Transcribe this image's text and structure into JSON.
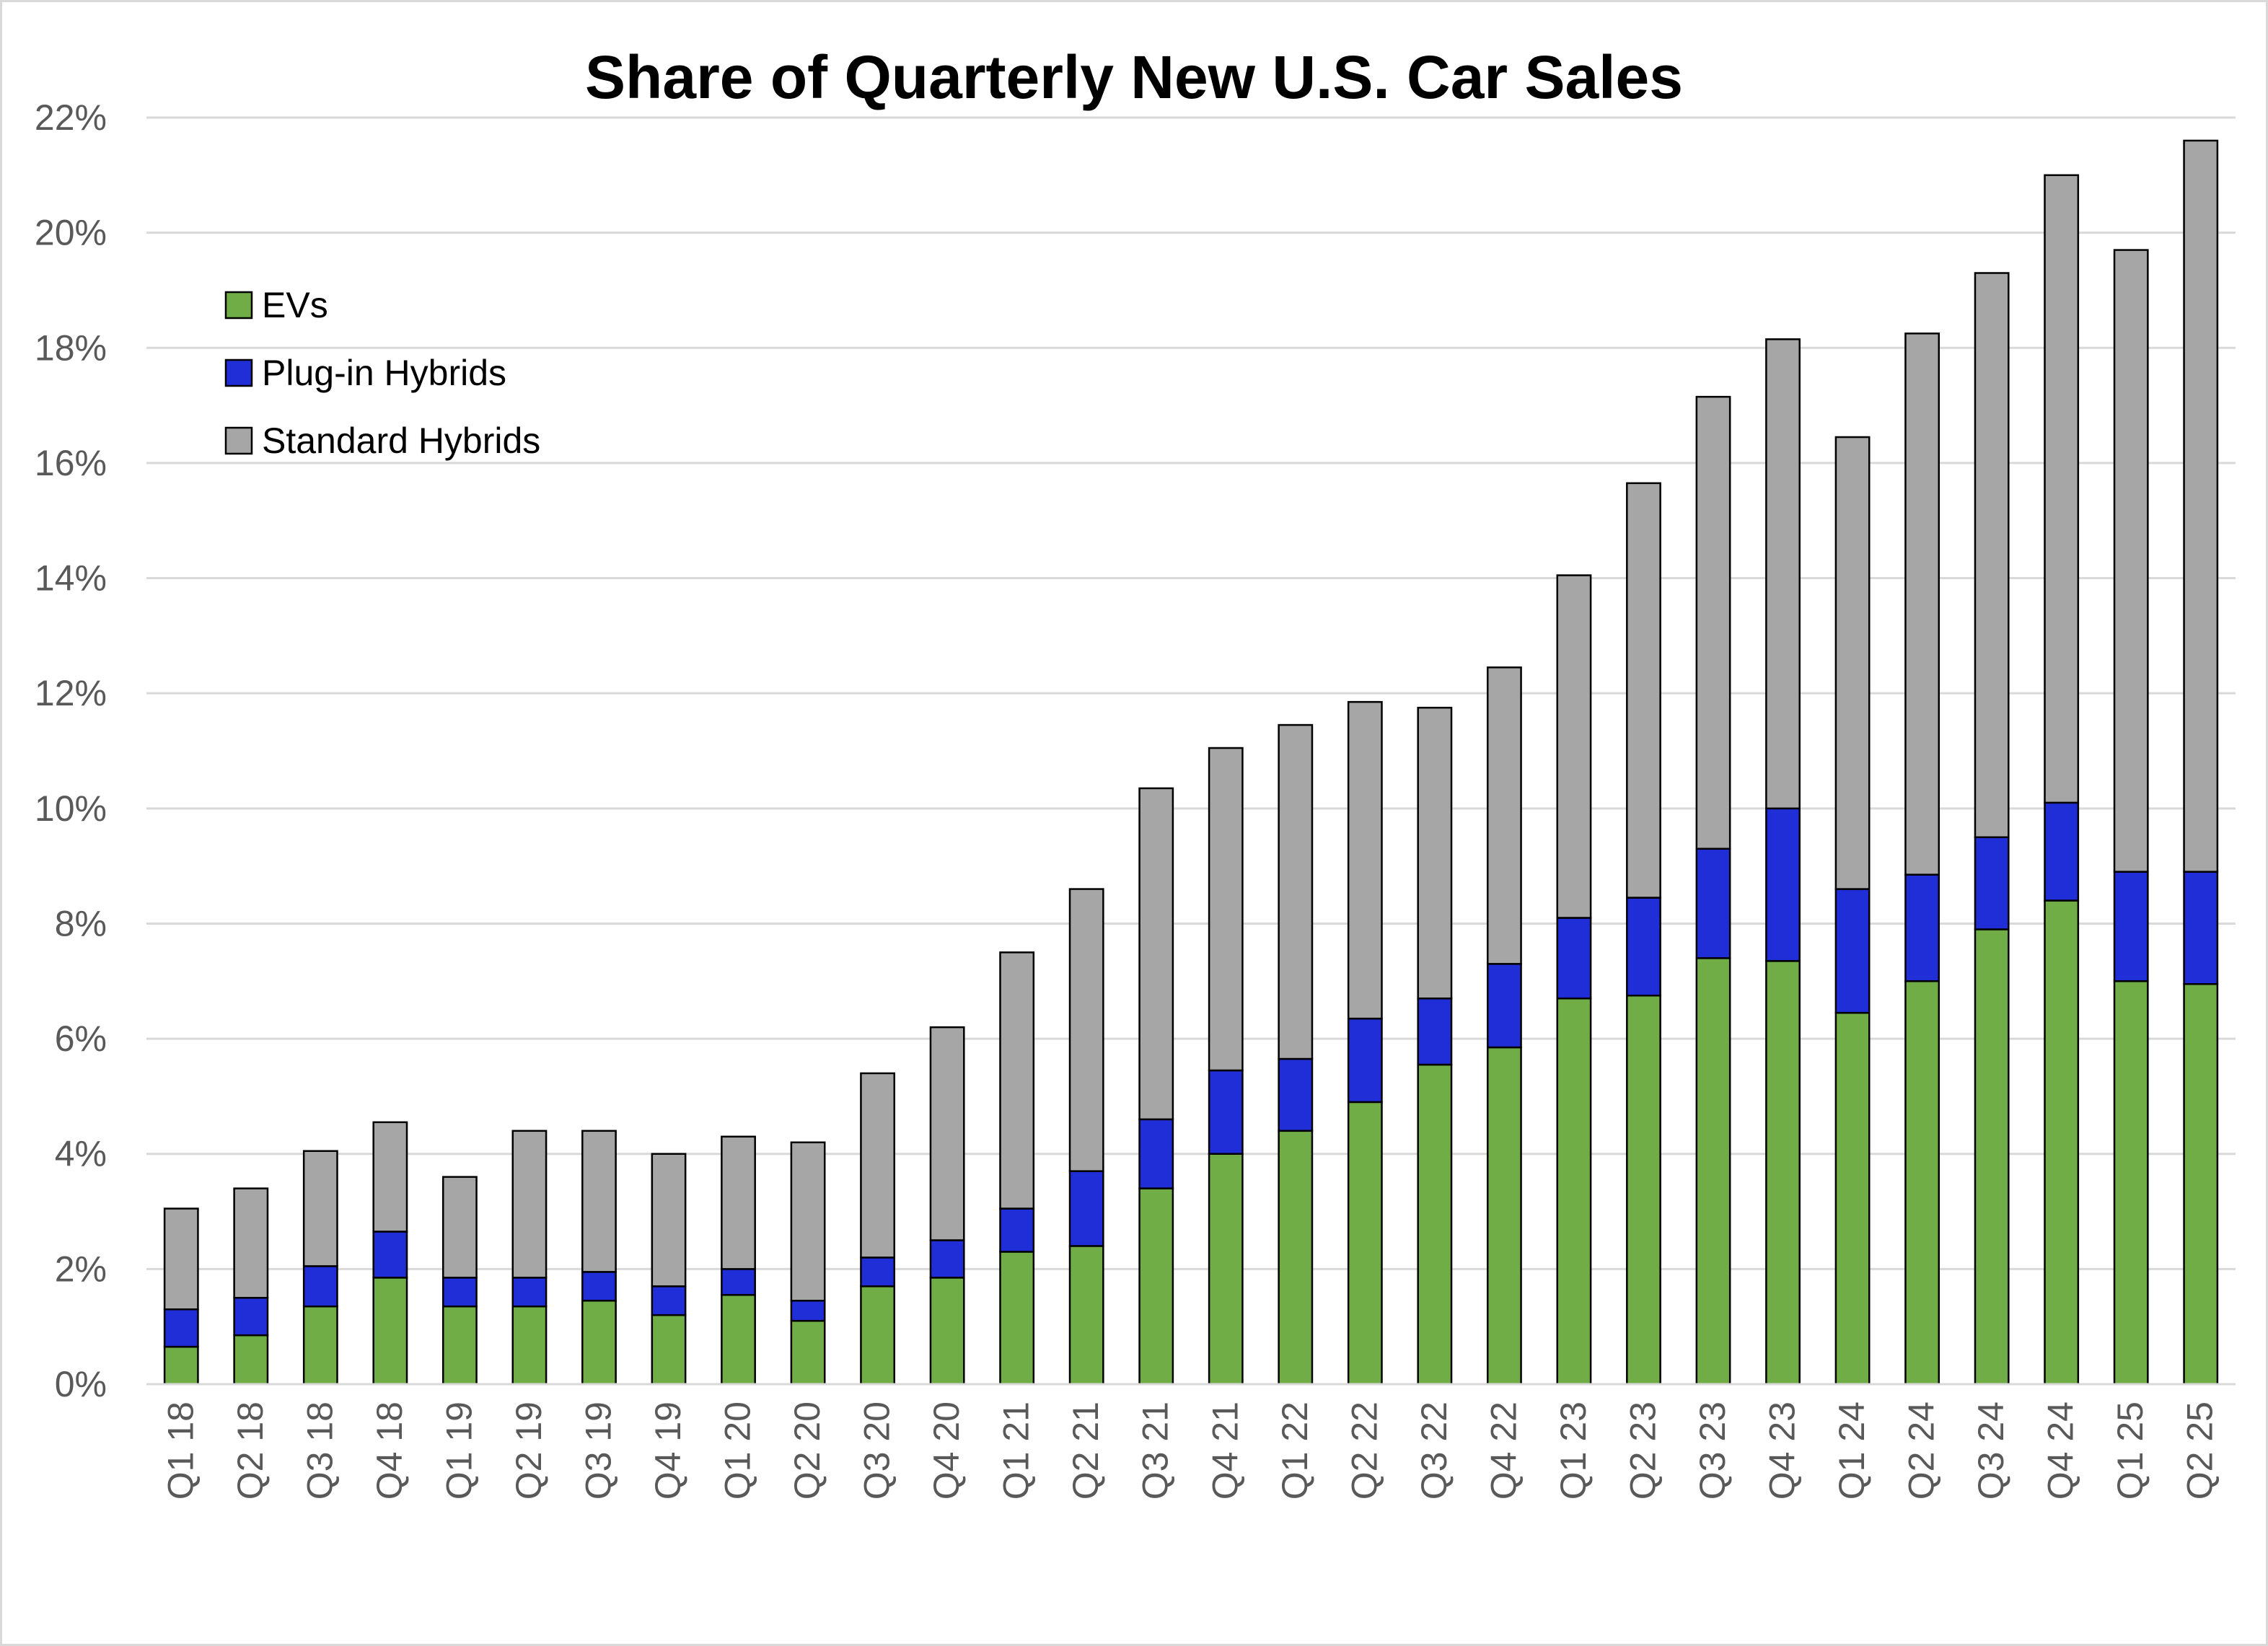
{
  "chart_data": {
    "type": "bar",
    "stacked": true,
    "title": "Share of Quarterly New U.S. Car Sales",
    "xlabel": "",
    "ylabel": "",
    "ylim": [
      0,
      22
    ],
    "y_ticks": [
      "0%",
      "2%",
      "4%",
      "6%",
      "8%",
      "10%",
      "12%",
      "14%",
      "16%",
      "18%",
      "20%",
      "22%"
    ],
    "grid": "horizontal",
    "legend_position": "top-left",
    "categories": [
      "Q1 18",
      "Q2 18",
      "Q3 18",
      "Q4 18",
      "Q1 19",
      "Q2 19",
      "Q3 19",
      "Q4 19",
      "Q1 20",
      "Q2 20",
      "Q3 20",
      "Q4 20",
      "Q1 21",
      "Q2 21",
      "Q3 21",
      "Q4 21",
      "Q1 22",
      "Q2 22",
      "Q3 22",
      "Q4 22",
      "Q1 23",
      "Q2 23",
      "Q3 23",
      "Q4 23",
      "Q1 24",
      "Q2 24",
      "Q3 24",
      "Q4 24",
      "Q1 25",
      "Q2 25"
    ],
    "series": [
      {
        "name": "EVs",
        "color": "#70ad47",
        "values": [
          0.65,
          0.85,
          1.35,
          1.85,
          1.35,
          1.35,
          1.45,
          1.2,
          1.55,
          1.1,
          1.7,
          1.85,
          2.3,
          2.4,
          3.4,
          4.0,
          4.4,
          4.9,
          5.55,
          5.85,
          6.7,
          6.75,
          7.4,
          7.35,
          6.45,
          7.0,
          7.9,
          8.4,
          7.0,
          6.95
        ]
      },
      {
        "name": "Plug-in Hybrids",
        "color": "#1f2ed6",
        "values": [
          0.65,
          0.65,
          0.7,
          0.8,
          0.5,
          0.5,
          0.5,
          0.5,
          0.45,
          0.35,
          0.5,
          0.65,
          0.75,
          1.3,
          1.2,
          1.45,
          1.25,
          1.45,
          1.15,
          1.45,
          1.4,
          1.7,
          1.9,
          2.65,
          2.15,
          1.85,
          1.6,
          1.7,
          1.9,
          1.95
        ]
      },
      {
        "name": "Standard Hybrids",
        "color": "#a6a6a6",
        "values": [
          1.75,
          1.9,
          2.0,
          1.9,
          1.75,
          2.55,
          2.45,
          2.3,
          2.3,
          2.75,
          3.2,
          3.7,
          4.45,
          4.9,
          5.75,
          5.6,
          5.8,
          5.5,
          5.05,
          5.15,
          5.95,
          7.2,
          7.85,
          8.15,
          7.85,
          9.4,
          9.8,
          10.9,
          10.8,
          12.7
        ]
      }
    ]
  }
}
